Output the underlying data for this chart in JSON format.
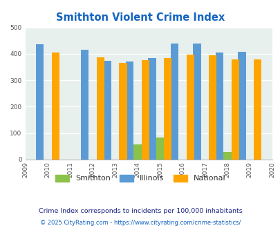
{
  "title": "Smithton Violent Crime Index",
  "all_years": [
    2009,
    2010,
    2011,
    2012,
    2013,
    2014,
    2015,
    2016,
    2017,
    2018,
    2019,
    2020
  ],
  "data_years": [
    2010,
    2012,
    2013,
    2014,
    2015,
    2016,
    2017,
    2018,
    2019
  ],
  "smithton": [
    0,
    0,
    0,
    58,
    83,
    0,
    0,
    30,
    0
  ],
  "illinois": [
    435,
    415,
    373,
    370,
    383,
    438,
    438,
    405,
    408
  ],
  "national": [
    406,
    387,
    366,
    376,
    383,
    397,
    394,
    380,
    379
  ],
  "smithton_color": "#8bc34a",
  "illinois_color": "#5b9bd5",
  "national_color": "#ffa500",
  "bg_color": "#e8f0ee",
  "ylim": [
    0,
    500
  ],
  "yticks": [
    0,
    100,
    200,
    300,
    400,
    500
  ],
  "title_color": "#1565c0",
  "footer1": "Crime Index corresponds to incidents per 100,000 inhabitants",
  "footer2": "© 2025 CityRating.com - https://www.cityrating.com/crime-statistics/",
  "bar_width": 0.35,
  "legend_labels": [
    "Smithton",
    "Illinois",
    "National"
  ],
  "footer1_color": "#1a237e",
  "footer2_color": "#1565c0"
}
